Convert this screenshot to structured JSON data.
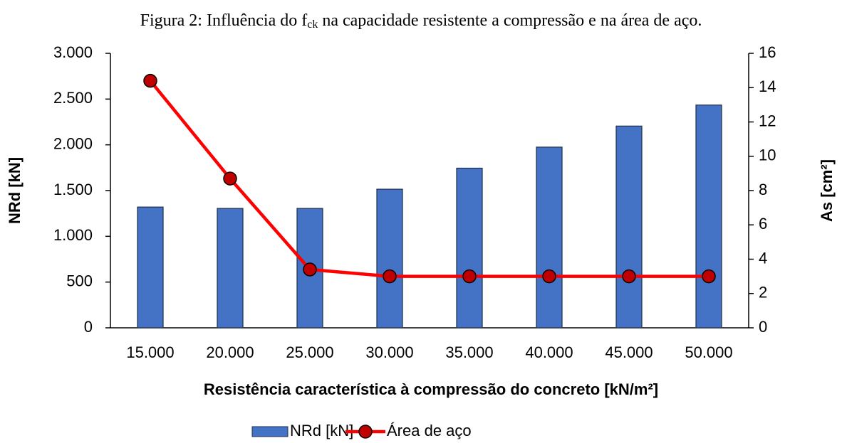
{
  "chart_data": {
    "type": "bar",
    "title": [
      "Figura 2: Influência do f",
      "ck",
      " na capacidade resistente a compressão e na área de aço."
    ],
    "xlabel": "Resistência característica à compressão do concreto [kN/m²]",
    "ylabel": "NRd [kN]",
    "y2label": "As [cm²]",
    "categories": [
      "15.000",
      "20.000",
      "25.000",
      "30.000",
      "35.000",
      "40.000",
      "45.000",
      "50.000"
    ],
    "series": [
      {
        "name": "NRd [kN]",
        "type": "bar",
        "color": "#4472c4",
        "values": [
          1320,
          1305,
          1305,
          1515,
          1745,
          1975,
          2205,
          2435
        ]
      },
      {
        "name": "Área de aço",
        "type": "line",
        "axis": "y2",
        "color": "#ff0000",
        "marker_color": "#c00000",
        "values": [
          14.4,
          8.7,
          3.4,
          3.0,
          3.0,
          3.0,
          3.0,
          3.0
        ]
      }
    ],
    "ylim": [
      0,
      3000
    ],
    "yticks": [
      0,
      500,
      {
        "value": 1000,
        "label": "1.000"
      },
      {
        "value": 1500,
        "label": "1.500"
      },
      {
        "value": 2000,
        "label": "2.000"
      },
      {
        "value": 2500,
        "label": "2.500"
      },
      {
        "value": 3000,
        "label": "3.000"
      }
    ],
    "y2lim": [
      0,
      16
    ],
    "y2ticks": [
      0,
      2,
      4,
      6,
      8,
      10,
      12,
      14,
      16
    ],
    "legend": "bottom"
  }
}
